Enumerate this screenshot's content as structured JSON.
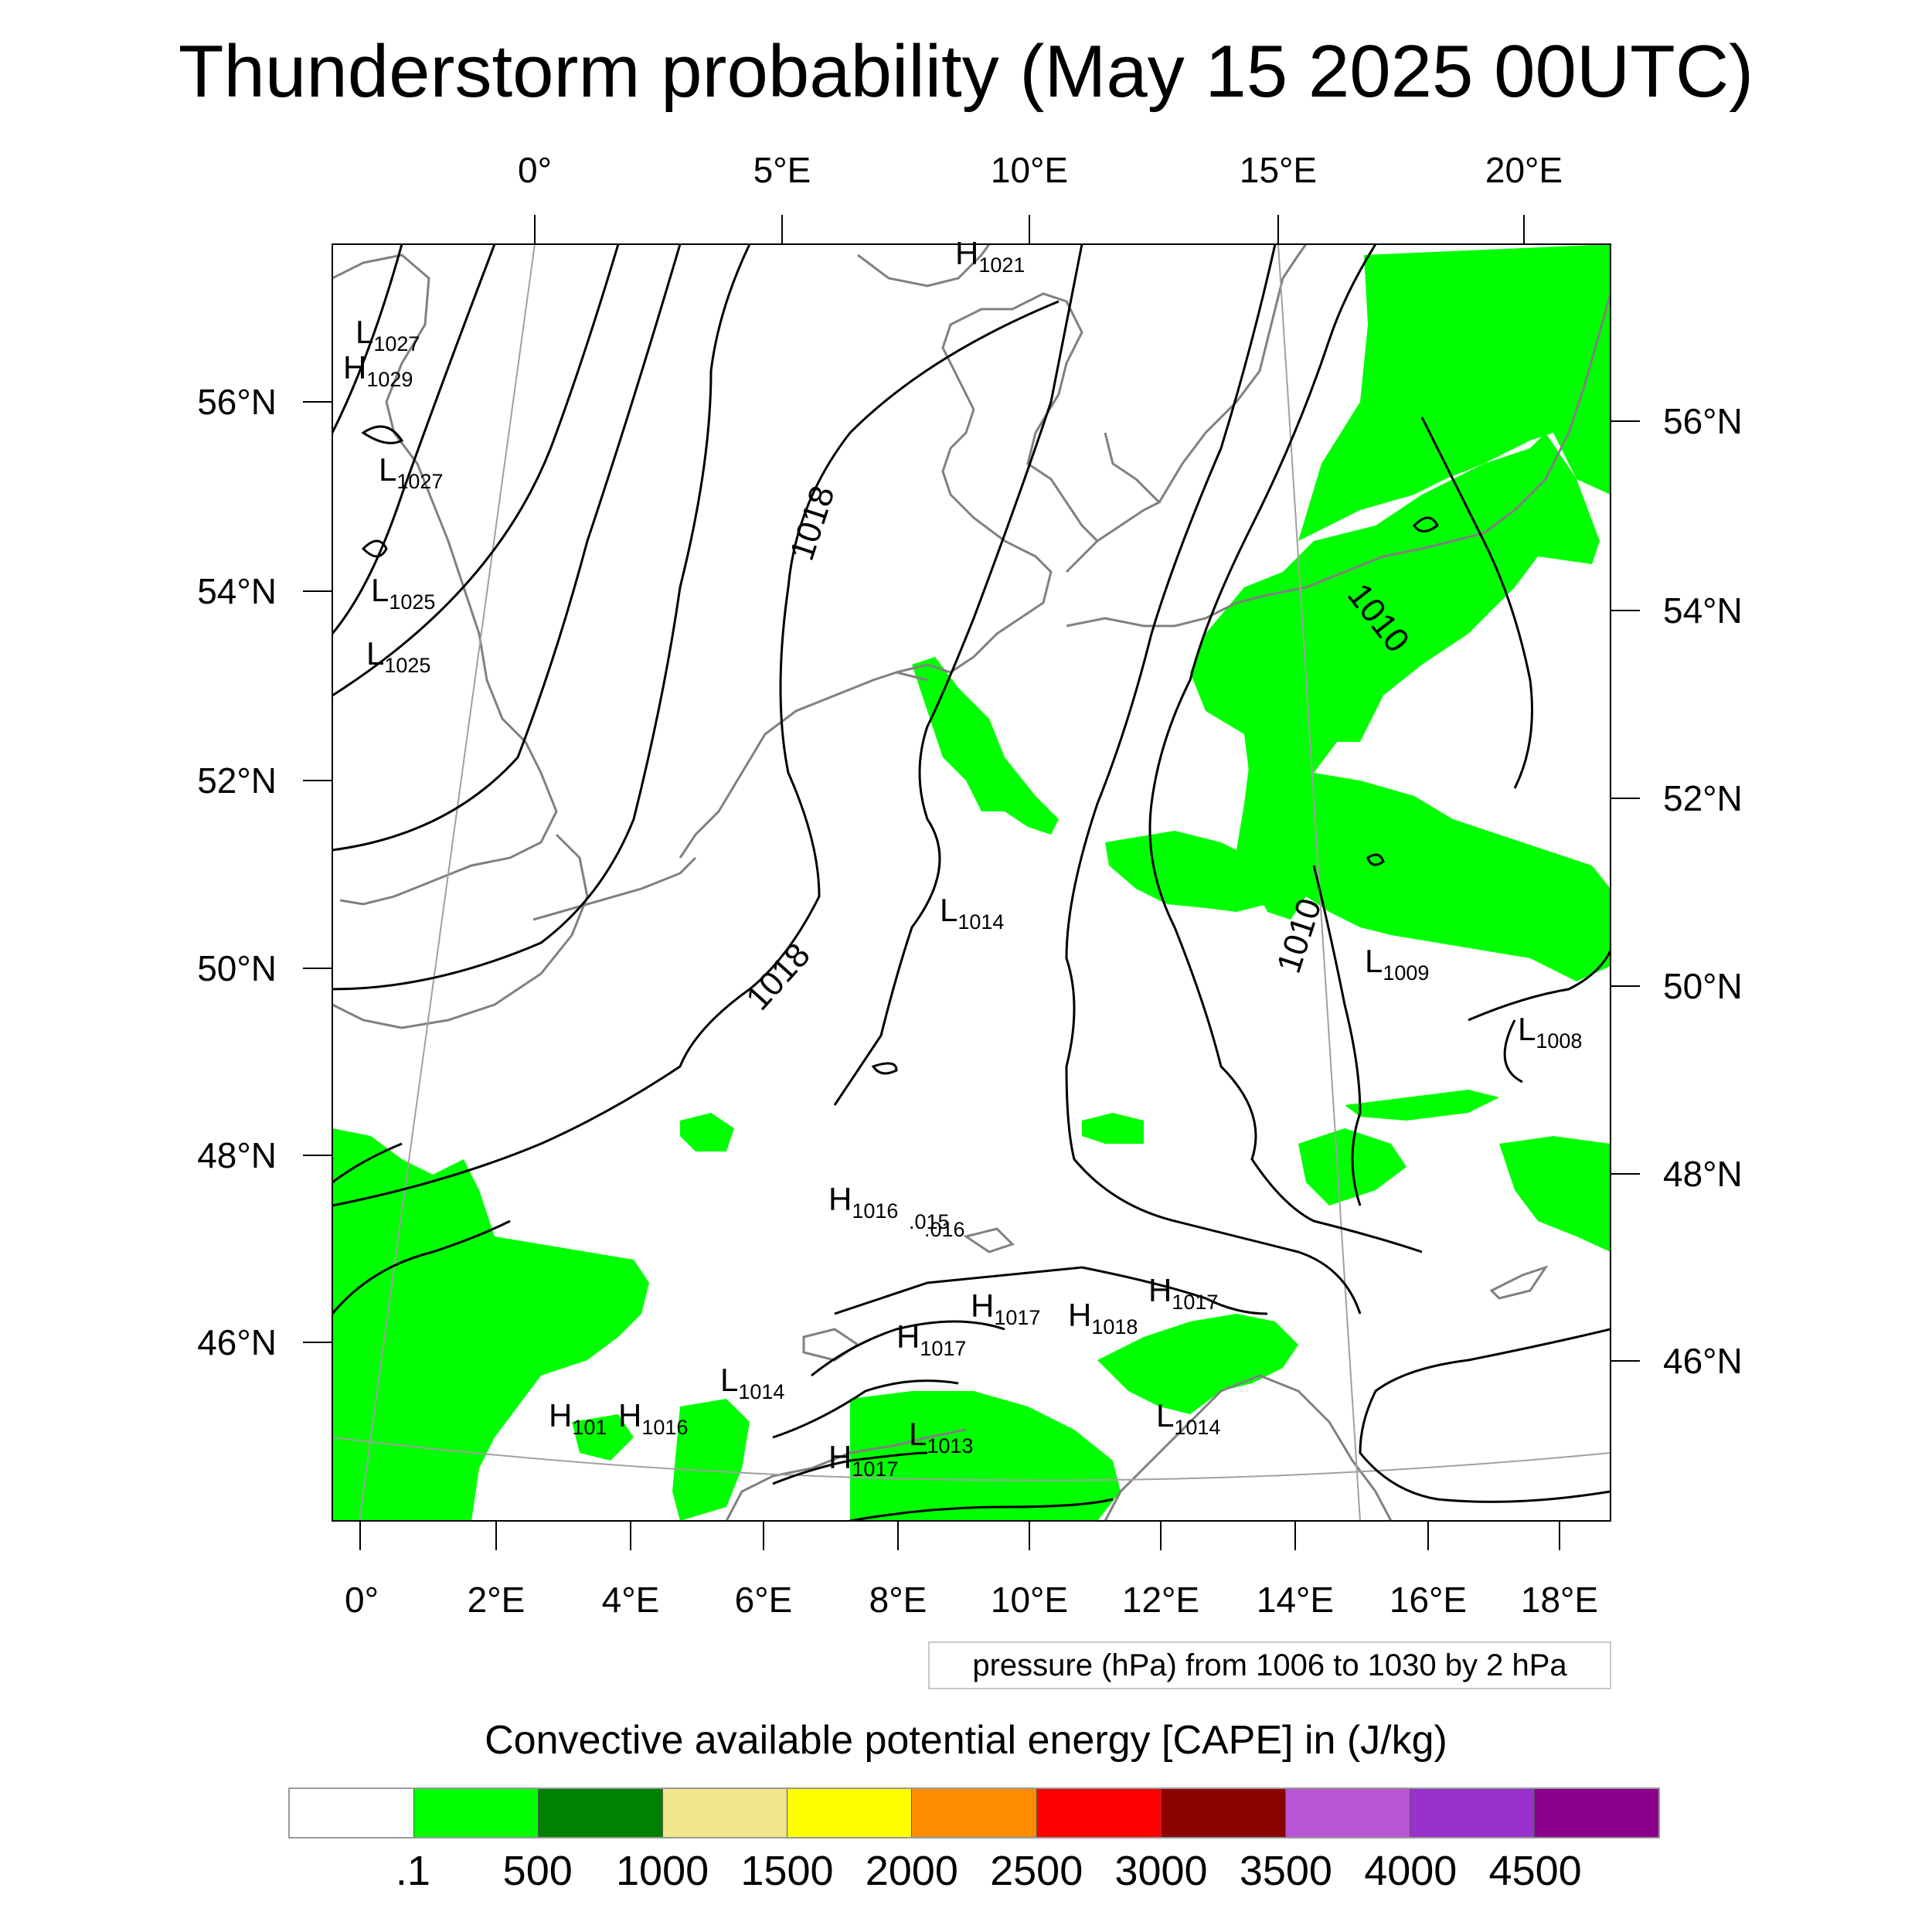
{
  "title": "Thunderstorm probability (May 15 2025 00UTC)",
  "map": {
    "top_lon_labels": [
      "0°",
      "5°E",
      "10°E",
      "15°E",
      "20°E"
    ],
    "bottom_lon_labels": [
      "0°",
      "2°E",
      "4°E",
      "6°E",
      "8°E",
      "10°E",
      "12°E",
      "14°E",
      "16°E",
      "18°E"
    ],
    "left_lat_labels": [
      "56°N",
      "54°N",
      "52°N",
      "50°N",
      "48°N",
      "46°N"
    ],
    "right_lat_labels": [
      "56°N",
      "54°N",
      "52°N",
      "50°N",
      "48°N",
      "46°N"
    ],
    "pressure_centers": [
      {
        "type": "H",
        "value": "1021"
      },
      {
        "type": "L",
        "value": "1027"
      },
      {
        "type": "H",
        "value": "1029"
      },
      {
        "type": "L",
        "value": "1027"
      },
      {
        "type": "L",
        "value": "1025"
      },
      {
        "type": "L",
        "value": "1025"
      },
      {
        "type": "L",
        "value": "1014"
      },
      {
        "type": "L",
        "value": "1009"
      },
      {
        "type": "L",
        "value": "1008"
      },
      {
        "type": "H",
        "value": "1016"
      },
      {
        "type": "H",
        "value": "1017"
      },
      {
        "type": "H",
        "value": "1017"
      },
      {
        "type": "H",
        "value": "1018"
      },
      {
        "type": "H",
        "value": "1017"
      },
      {
        "type": "L",
        "value": "1014"
      },
      {
        "type": "H",
        "value": "101"
      },
      {
        "type": "H",
        "value": "1016"
      },
      {
        "type": "L",
        "value": "1013"
      },
      {
        "type": "H",
        "value": "1017"
      },
      {
        "type": "L",
        "value": "1014"
      }
    ],
    "contour_labels": [
      "1018",
      "1018",
      "1010",
      "1010"
    ],
    "stray_labels": [
      ".015",
      ".016"
    ],
    "colors": {
      "land_outline": "#808080",
      "isobar": "#000000",
      "cape_fill": "#00ff00"
    }
  },
  "pressure_info": "pressure (hPa) from 1006 to 1030 by 2 hPa",
  "colorbar": {
    "title": "Convective available potential energy [CAPE] in (J/kg)",
    "colors": [
      "#ffffff",
      "#00ff00",
      "#008000",
      "#f0e68c",
      "#ffff00",
      "#ff8c00",
      "#ff0000",
      "#8b0000",
      "#ba55d3",
      "#9932cc",
      "#8b008b"
    ],
    "labels": [
      ".1",
      "500",
      "1000",
      "1500",
      "2000",
      "2500",
      "3000",
      "3500",
      "4000",
      "4500"
    ]
  }
}
